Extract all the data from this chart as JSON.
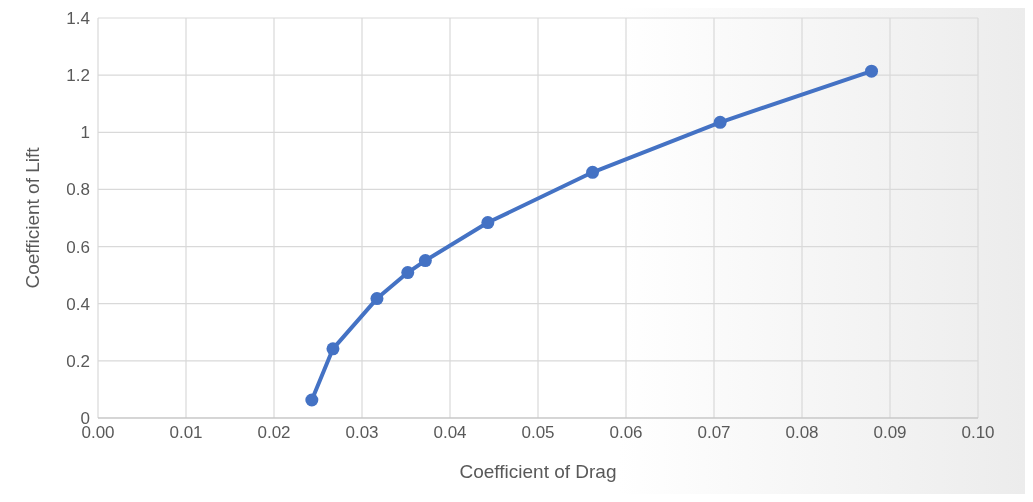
{
  "chart_data": {
    "type": "line",
    "xlabel": "Coefficient of Drag",
    "ylabel": "Coefficient of Lift",
    "x": [
      0.0243,
      0.0267,
      0.0317,
      0.0352,
      0.0372,
      0.0443,
      0.0562,
      0.0707,
      0.0879
    ],
    "series": [
      {
        "color": "#4472c4",
        "values": [
          0.063,
          0.242,
          0.418,
          0.509,
          0.551,
          0.684,
          0.86,
          1.035,
          1.214
        ]
      }
    ],
    "xlim": [
      0,
      0.1
    ],
    "xticks": [
      {
        "value": 0,
        "label": "0.00"
      },
      {
        "value": 0.01,
        "label": "0.01"
      },
      {
        "value": 0.02,
        "label": "0.02"
      },
      {
        "value": 0.03,
        "label": "0.03"
      },
      {
        "value": 0.04,
        "label": "0.04"
      },
      {
        "value": 0.05,
        "label": "0.05"
      },
      {
        "value": 0.06,
        "label": "0.06"
      },
      {
        "value": 0.07,
        "label": "0.07"
      },
      {
        "value": 0.08,
        "label": "0.08"
      },
      {
        "value": 0.09,
        "label": "0.09"
      },
      {
        "value": 0.1,
        "label": "0.10"
      }
    ],
    "ylim": [
      0,
      1.4
    ],
    "yticks": [
      0,
      0.2,
      0.4,
      0.6,
      0.8,
      1,
      1.2,
      1.4
    ],
    "grid": true,
    "marker": "circle",
    "line_style": "solid"
  }
}
